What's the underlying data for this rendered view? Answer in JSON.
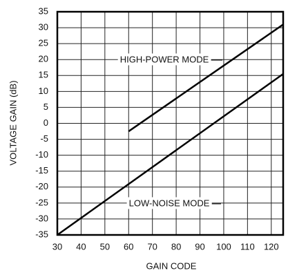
{
  "chart_data": {
    "type": "line",
    "x_label": "GAIN CODE",
    "y_label": "VOLTAGE GAIN (dB)",
    "series": [
      {
        "name": "HIGH-POWER MODE",
        "color": "#000000",
        "x": [
          60,
          125
        ],
        "values": [
          -2.5,
          31
        ]
      },
      {
        "name": "LOW-NOISE MODE",
        "color": "#000000",
        "x": [
          30,
          125
        ],
        "values": [
          -35,
          15.5
        ]
      }
    ],
    "xlim": [
      30,
      125
    ],
    "xticks": [
      30,
      40,
      50,
      60,
      70,
      80,
      90,
      100,
      110,
      120
    ],
    "ylim": [
      -35,
      35
    ],
    "yticks": [
      -35,
      -30,
      -25,
      -20,
      -15,
      -10,
      -5,
      0,
      5,
      10,
      15,
      20,
      25,
      30,
      35
    ],
    "grid": true
  }
}
